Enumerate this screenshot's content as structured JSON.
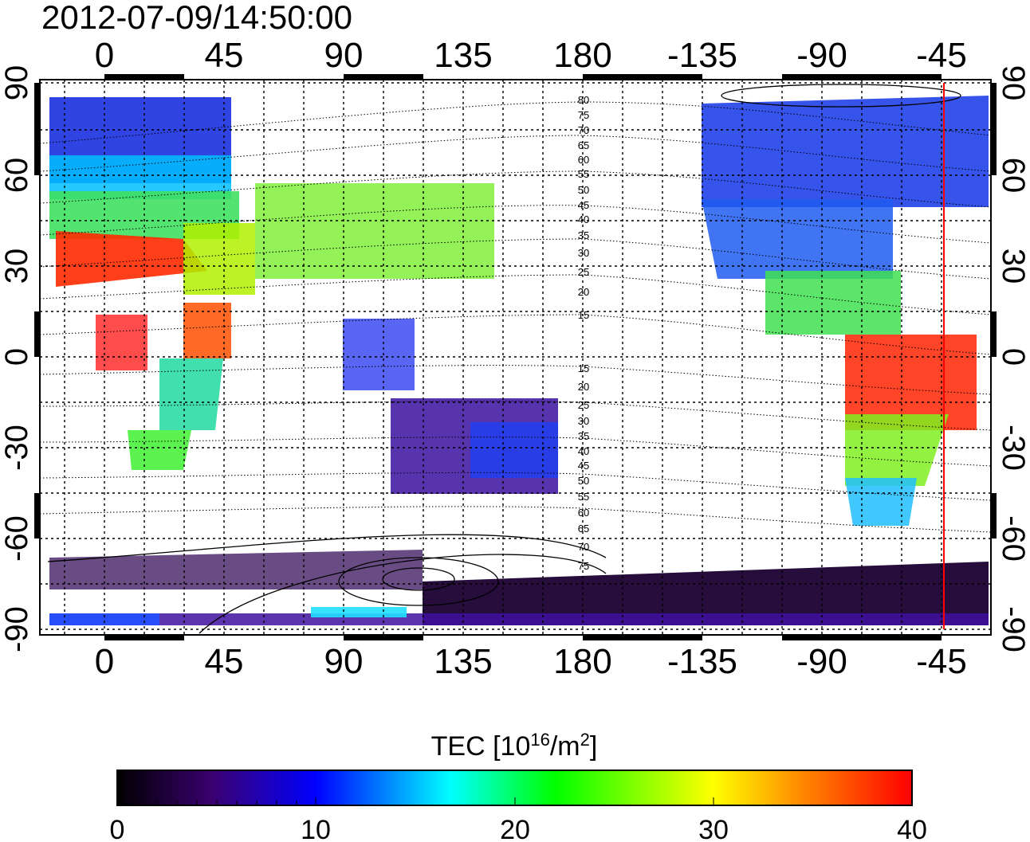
{
  "map": {
    "timestamp": "2012-07-09/14:50:00",
    "lon_ticks": [
      "0",
      "45",
      "90",
      "135",
      "180",
      "-135",
      "-90",
      "-45"
    ],
    "lat_ticks": [
      "90",
      "60",
      "30",
      "0",
      "-30",
      "-60",
      "-90"
    ],
    "contour_labels_north": [
      "80",
      "75",
      "70",
      "65",
      "60",
      "55",
      "50",
      "45",
      "40",
      "35",
      "30",
      "25",
      "20",
      "15"
    ],
    "contour_labels_south": [
      "15",
      "20",
      "25",
      "30",
      "35",
      "40",
      "45",
      "50",
      "55",
      "60",
      "65",
      "70",
      "75"
    ],
    "terminator_longitude": -45
  },
  "colorbar": {
    "title_prefix": "TEC  [10",
    "title_sup1": "16",
    "title_mid": "/m",
    "title_sup2": "2",
    "title_suffix": "]",
    "ticks": [
      "0",
      "10",
      "20",
      "30",
      "40"
    ],
    "min": 0,
    "max": 40
  },
  "colors": {
    "scale": [
      "#000000",
      "#3a0070",
      "#0000ff",
      "#00ffff",
      "#00ff00",
      "#ffff00",
      "#ff8000",
      "#ff0000"
    ],
    "terminator_line": "#ff0000"
  }
}
